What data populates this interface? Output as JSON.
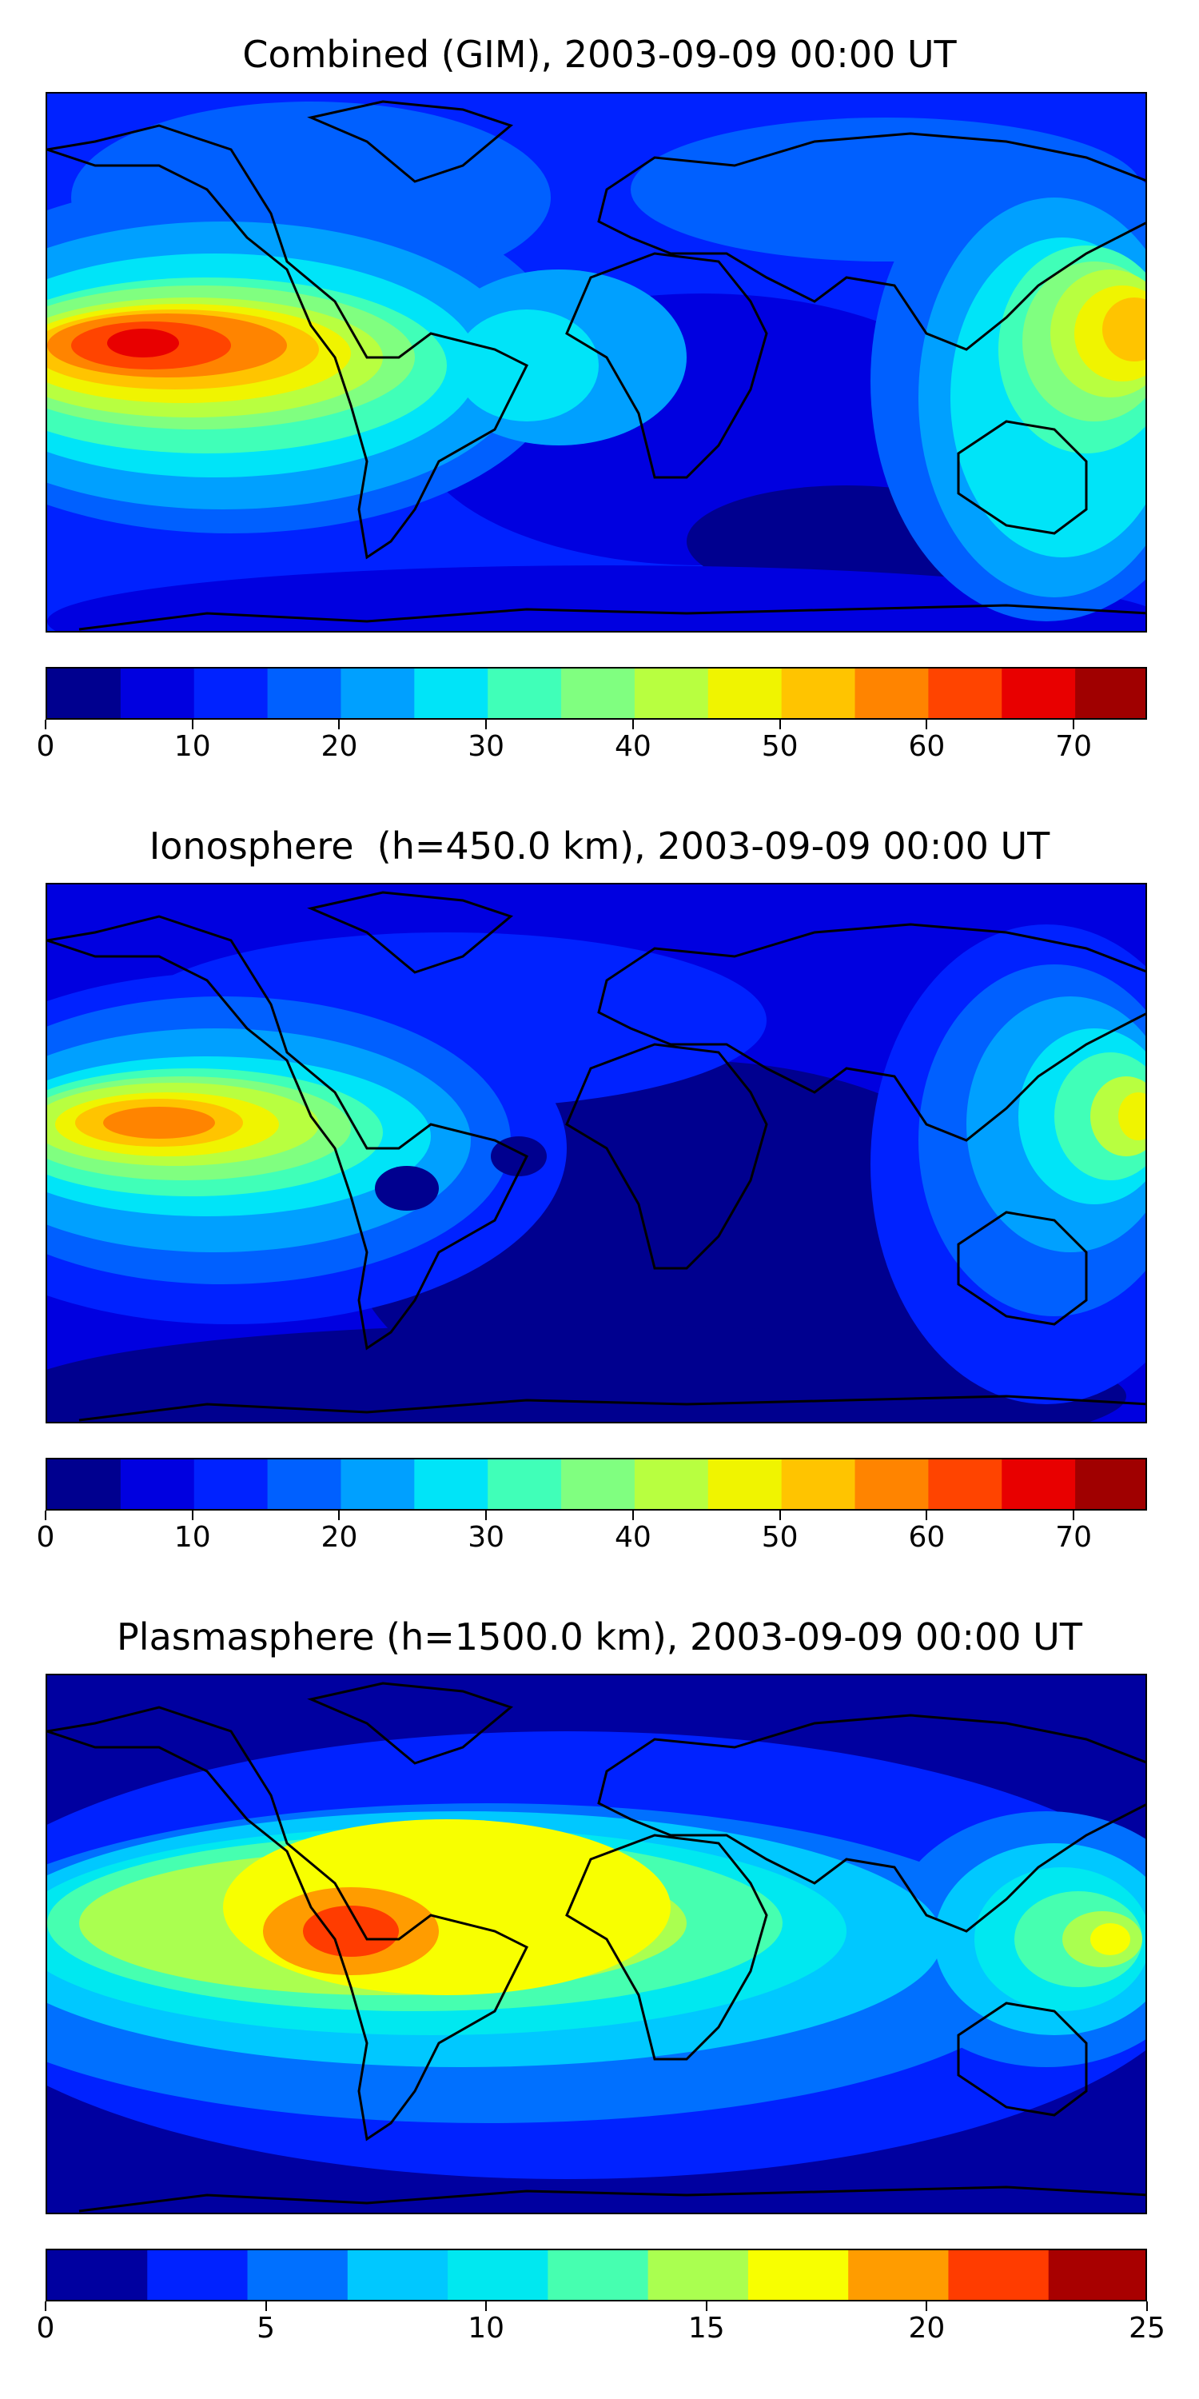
{
  "panels": [
    {
      "title": "Combined (GIM), 2003-09-09 00:00 UT",
      "colorbar": {
        "ticks": [
          "0",
          "10",
          "20",
          "30",
          "40",
          "50",
          "60",
          "70"
        ]
      }
    },
    {
      "title": "Ionosphere  (h=450.0 km), 2003-09-09 00:00 UT",
      "colorbar": {
        "ticks": [
          "0",
          "10",
          "20",
          "30",
          "40",
          "50",
          "60",
          "70"
        ]
      }
    },
    {
      "title": "Plasmasphere (h=1500.0 km), 2003-09-09 00:00 UT",
      "colorbar": {
        "ticks": [
          "0",
          "5",
          "10",
          "15",
          "20",
          "25"
        ]
      }
    }
  ],
  "colors": {
    "jet15": [
      "#00008f",
      "#0000e0",
      "#0022ff",
      "#0060ff",
      "#00a0ff",
      "#00e4f8",
      "#40ffb8",
      "#80ff80",
      "#b8ff40",
      "#f0f400",
      "#ffc400",
      "#ff8400",
      "#ff4400",
      "#e80000",
      "#a00000"
    ],
    "jet10": [
      "#0000a0",
      "#0022ff",
      "#0070ff",
      "#00c8ff",
      "#00e8f0",
      "#46ffb0",
      "#aaff50",
      "#f8ff00",
      "#ff9c00",
      "#ff3c00",
      "#a80000"
    ]
  }
}
